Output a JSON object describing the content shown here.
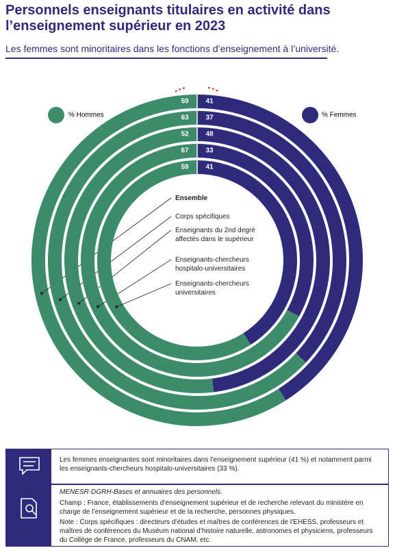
{
  "header": {
    "title": "Personnels enseignants titulaires en activité dans l’enseignement supérieur en 2023",
    "subtitle": "Les femmes sont minoritaires dans les fonctions d’enseignement à l’université."
  },
  "chart_data": {
    "type": "rings",
    "categories": [
      "Ensemble",
      "Corps spécifiques",
      "Enseignants du 2nd degré affectés dans le supérieur",
      "Enseignants-chercheurs hospitalo-universitaires",
      "Enseignants-chercheurs universitaires"
    ],
    "series": [
      {
        "name": "% Hommes",
        "color": "#3c8c6c",
        "values": [
          59,
          63,
          52,
          67,
          59
        ]
      },
      {
        "name": "% Femmes",
        "color": "#2f2a7c",
        "values": [
          41,
          37,
          48,
          33,
          41
        ]
      }
    ]
  },
  "footer": {
    "key": "Les femmes enseignantes sont minoritaires dans l’enseignement supérieur (41 %) et notamment parmi les enseignants-chercheurs hospitalo-universitaires (33 %).",
    "source": "MENESR-DGRH-Bases et annuaires des personnels.",
    "champ": "Champ : France, établissements d’enseignement supérieur et de recherche relevant du ministère en charge de l’enseignement supérieur et de la recherche, personnes physiques.",
    "note": "Note : Corps spécifiques : directeurs d’études et maîtres de conférences de l’EHESS, professeurs et maîtres de conférences du Muséum national d’histoire naturelle, astronomes et physiciens, professeurs du Collège de France, professeurs du CNAM, etc."
  }
}
